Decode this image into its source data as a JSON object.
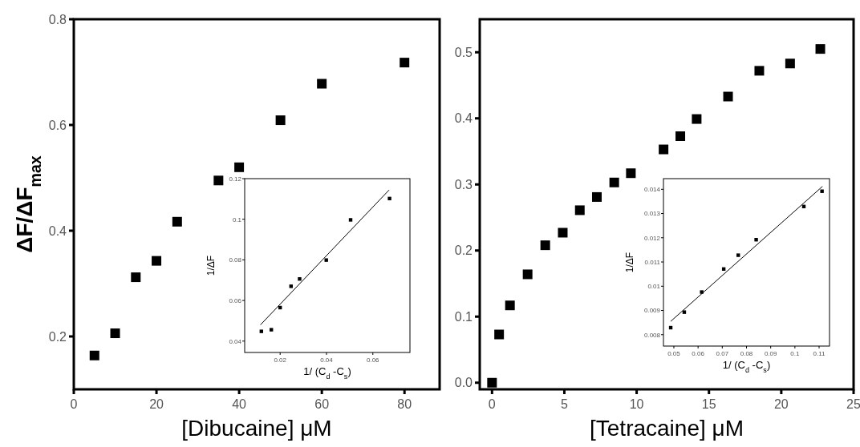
{
  "chart_data": [
    {
      "type": "scatter",
      "xlabel": "[Dibucaine] μM",
      "ylabel": "ΔF/ΔF$_{max}$",
      "xlim": [
        0,
        88.5
      ],
      "ylim": [
        0.1,
        0.8
      ],
      "xticks": [
        0,
        20,
        40,
        60,
        80
      ],
      "yticks": [
        0.2,
        0.4,
        0.6,
        0.8
      ],
      "grid": false,
      "series": [
        {
          "color": "#000000",
          "marker": "square",
          "x": [
            5,
            10,
            15,
            20,
            25,
            35,
            40,
            50,
            60,
            80
          ],
          "values": [
            0.164,
            0.206,
            0.312,
            0.343,
            0.417,
            0.495,
            0.52,
            0.609,
            0.678,
            0.718
          ]
        }
      ]
    },
    {
      "type": "scatter",
      "xlabel": "1/ (C$_{d}$ -C$_{s}$)",
      "ylabel": "1/ΔF",
      "xlim": [
        0.0047,
        0.076
      ],
      "ylim": [
        0.0344,
        0.12
      ],
      "xticks": [
        0.02,
        0.04,
        0.06
      ],
      "yticks": [
        0.04,
        0.06,
        0.08,
        0.1,
        0.12
      ],
      "grid": false,
      "series": [
        {
          "color": "#000000",
          "marker": "square",
          "x": [
            0.0119,
            0.0162,
            0.02,
            0.0247,
            0.0284,
            0.0399,
            0.0504,
            0.0672
          ],
          "values": [
            0.0448,
            0.0456,
            0.0565,
            0.067,
            0.0706,
            0.0799,
            0.0997,
            0.1102
          ]
        },
        {
          "type": "line",
          "color": "#000000",
          "x": [
            0.0115,
            0.067
          ],
          "values": [
            0.048,
            0.1144
          ]
        }
      ]
    },
    {
      "type": "scatter",
      "xlabel": "[Tetracaine] μM",
      "xlim": [
        -0.85,
        25
      ],
      "ylim": [
        -0.01,
        0.55
      ],
      "xticks": [
        0,
        5,
        10,
        15,
        20,
        25
      ],
      "yticks": [
        {
          "value": 0,
          "label": "0.0"
        },
        0.1,
        0.2,
        0.3,
        0.4,
        0.5
      ],
      "grid": false,
      "series": [
        {
          "color": "#000000",
          "marker": "square",
          "x": [
            0,
            0.49,
            1.24,
            2.46,
            3.68,
            4.89,
            6.07,
            7.25,
            8.45,
            9.6,
            11.86,
            13.02,
            14.15,
            16.32,
            18.48,
            20.61,
            22.7
          ],
          "values": [
            0,
            0.073,
            0.117,
            0.164,
            0.208,
            0.227,
            0.261,
            0.281,
            0.303,
            0.317,
            0.353,
            0.373,
            0.399,
            0.433,
            0.472,
            0.483,
            0.505
          ]
        }
      ]
    },
    {
      "type": "scatter",
      "xlabel": "1/ (C$_{d}$ -C$_{s}$)",
      "ylabel": "1/ΔF",
      "xlim": [
        0.0457,
        0.1143
      ],
      "ylim": [
        0.00753,
        0.01444
      ],
      "xticks": [
        0.05,
        0.06,
        0.07,
        0.08,
        0.09,
        0.1,
        0.11
      ],
      "yticks": [
        0.008,
        0.009,
        0.01,
        0.011,
        0.012,
        0.013,
        0.014
      ],
      "grid": false,
      "series": [
        {
          "color": "#000000",
          "marker": "square",
          "x": [
            0.0487,
            0.0543,
            0.0615,
            0.0706,
            0.0766,
            0.084,
            0.1037,
            0.1112
          ],
          "values": [
            0.00829,
            0.00893,
            0.00976,
            0.01071,
            0.01128,
            0.01192,
            0.01329,
            0.01392
          ]
        },
        {
          "type": "line",
          "color": "#000000",
          "x": [
            0.0487,
            0.1114
          ],
          "values": [
            0.00855,
            0.01412
          ]
        }
      ]
    }
  ]
}
